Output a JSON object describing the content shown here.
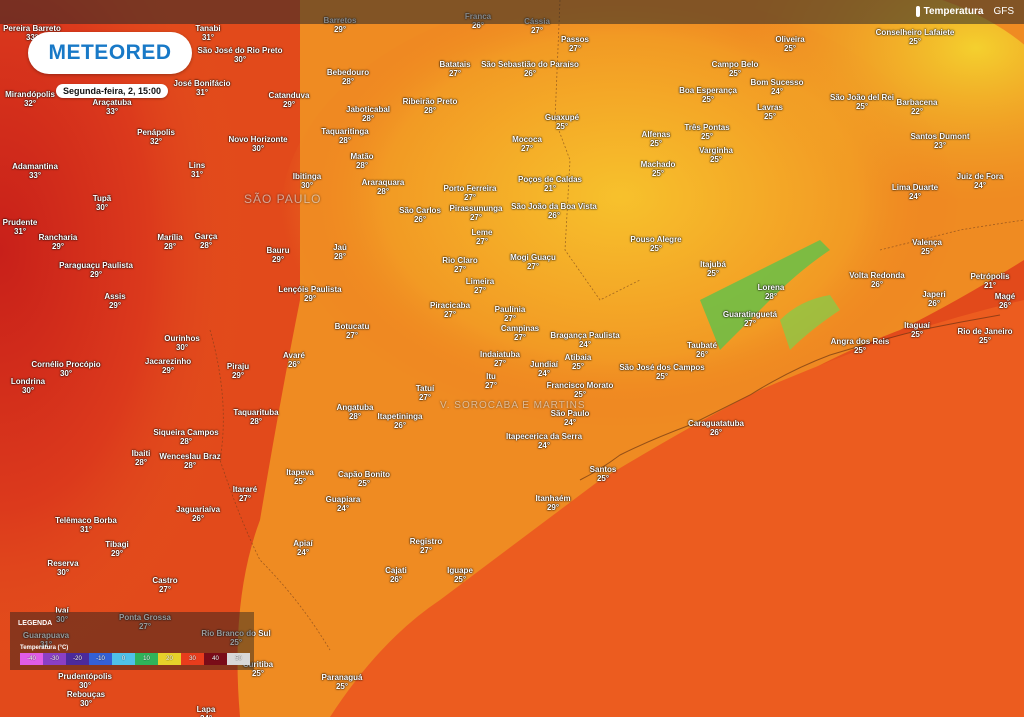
{
  "app": {
    "logo": "METEORED",
    "datetime": "Segunda-feira, 2, 15:00"
  },
  "toolbar": {
    "layer": "Temperatura",
    "model": "GFS"
  },
  "map": {
    "state_labels": [
      "SÃO PAULO",
      "V. SOROCABA E MARTINS"
    ],
    "cities": [
      {
        "name": "Pereira Barreto",
        "temp": "33°"
      },
      {
        "name": "Tanabi",
        "temp": "31°"
      },
      {
        "name": "Barretos",
        "temp": "29°"
      },
      {
        "name": "Franca",
        "temp": "26°"
      },
      {
        "name": "Cássia",
        "temp": "27°"
      },
      {
        "name": "Passos",
        "temp": "27°"
      },
      {
        "name": "Oliveira",
        "temp": "25°"
      },
      {
        "name": "Conselheiro Lafaiete",
        "temp": "25°"
      },
      {
        "name": "São José do Rio Preto",
        "temp": "30°"
      },
      {
        "name": "Bebedouro",
        "temp": "28°"
      },
      {
        "name": "Batatais",
        "temp": "27°"
      },
      {
        "name": "São Sebastião do Paraíso",
        "temp": "26°"
      },
      {
        "name": "Campo Belo",
        "temp": "25°"
      },
      {
        "name": "Barbacena",
        "temp": "22°"
      },
      {
        "name": "Mirandópolis",
        "temp": "32°"
      },
      {
        "name": "Araçatuba",
        "temp": "33°"
      },
      {
        "name": "José Bonifácio",
        "temp": "31°"
      },
      {
        "name": "Catanduva",
        "temp": "29°"
      },
      {
        "name": "Jaboticabal",
        "temp": "28°"
      },
      {
        "name": "Ribeirão Preto",
        "temp": "28°"
      },
      {
        "name": "Guaxupé",
        "temp": "25°"
      },
      {
        "name": "Boa Esperança",
        "temp": "25°"
      },
      {
        "name": "Bom Sucesso",
        "temp": "24°"
      },
      {
        "name": "São João del Rei",
        "temp": "25°"
      },
      {
        "name": "Lavras",
        "temp": "25°"
      },
      {
        "name": "Penápolis",
        "temp": "32°"
      },
      {
        "name": "Novo Horizonte",
        "temp": "30°"
      },
      {
        "name": "Taquaritinga",
        "temp": "28°"
      },
      {
        "name": "Mococa",
        "temp": "27°"
      },
      {
        "name": "Alfenas",
        "temp": "25°"
      },
      {
        "name": "Três Pontas",
        "temp": "25°"
      },
      {
        "name": "Santos Dumont",
        "temp": "23°"
      },
      {
        "name": "Adamantina",
        "temp": "33°"
      },
      {
        "name": "Lins",
        "temp": "31°"
      },
      {
        "name": "Ibitinga",
        "temp": "30°"
      },
      {
        "name": "Matão",
        "temp": "28°"
      },
      {
        "name": "Araraquara",
        "temp": "28°"
      },
      {
        "name": "Porto Ferreira",
        "temp": "27°"
      },
      {
        "name": "Poços de Caldas",
        "temp": "21°"
      },
      {
        "name": "Machado",
        "temp": "25°"
      },
      {
        "name": "Varginha",
        "temp": "25°"
      },
      {
        "name": "Lima Duarte",
        "temp": "24°"
      },
      {
        "name": "Juiz de Fora",
        "temp": "24°"
      },
      {
        "name": "Tupã",
        "temp": "30°"
      },
      {
        "name": "São Carlos",
        "temp": "26°"
      },
      {
        "name": "Pirassununga",
        "temp": "27°"
      },
      {
        "name": "São João da Boa Vista",
        "temp": "26°"
      },
      {
        "name": "Prudente",
        "temp": "31°"
      },
      {
        "name": "Rancharia",
        "temp": "29°"
      },
      {
        "name": "Marília",
        "temp": "28°"
      },
      {
        "name": "Garça",
        "temp": "28°"
      },
      {
        "name": "Bauru",
        "temp": "29°"
      },
      {
        "name": "Jaú",
        "temp": "28°"
      },
      {
        "name": "Leme",
        "temp": "27°"
      },
      {
        "name": "Rio Claro",
        "temp": "27°"
      },
      {
        "name": "Mogi Guaçu",
        "temp": "27°"
      },
      {
        "name": "Pouso Alegre",
        "temp": "25°"
      },
      {
        "name": "Itajubá",
        "temp": "25°"
      },
      {
        "name": "Valença",
        "temp": "25°"
      },
      {
        "name": "Paraguaçu Paulista",
        "temp": "29°"
      },
      {
        "name": "Limeira",
        "temp": "27°"
      },
      {
        "name": "Volta Redonda",
        "temp": "26°"
      },
      {
        "name": "Petrópolis",
        "temp": "21°"
      },
      {
        "name": "Assis",
        "temp": "29°"
      },
      {
        "name": "Lençóis Paulista",
        "temp": "29°"
      },
      {
        "name": "Piracicaba",
        "temp": "27°"
      },
      {
        "name": "Paulínia",
        "temp": "27°"
      },
      {
        "name": "Lorena",
        "temp": "28°"
      },
      {
        "name": "Japeri",
        "temp": "26°"
      },
      {
        "name": "Magé",
        "temp": "26°"
      },
      {
        "name": "Ourinhos",
        "temp": "30°"
      },
      {
        "name": "Botucatu",
        "temp": "27°"
      },
      {
        "name": "Campinas",
        "temp": "27°"
      },
      {
        "name": "Bragança Paulista",
        "temp": "24°"
      },
      {
        "name": "Guaratinguetá",
        "temp": "27°"
      },
      {
        "name": "Itaguaí",
        "temp": "25°"
      },
      {
        "name": "Rio de Janeiro",
        "temp": "25°"
      },
      {
        "name": "Cornélio Procópio",
        "temp": "30°"
      },
      {
        "name": "Jacarezinho",
        "temp": "29°"
      },
      {
        "name": "Piraju",
        "temp": "29°"
      },
      {
        "name": "Avaré",
        "temp": "26°"
      },
      {
        "name": "Indaiatuba",
        "temp": "27°"
      },
      {
        "name": "Jundiaí",
        "temp": "24°"
      },
      {
        "name": "Atibaia",
        "temp": "25°"
      },
      {
        "name": "Taubaté",
        "temp": "26°"
      },
      {
        "name": "Angra dos Reis",
        "temp": "25°"
      },
      {
        "name": "Londrina",
        "temp": "30°"
      },
      {
        "name": "Tatuí",
        "temp": "27°"
      },
      {
        "name": "Itu",
        "temp": "27°"
      },
      {
        "name": "Francisco Morato",
        "temp": "25°"
      },
      {
        "name": "São José dos Campos",
        "temp": "25°"
      },
      {
        "name": "Taquarituba",
        "temp": "28°"
      },
      {
        "name": "Angatuba",
        "temp": "28°"
      },
      {
        "name": "Itapetininga",
        "temp": "26°"
      },
      {
        "name": "São Paulo",
        "temp": "24°"
      },
      {
        "name": "Caraguatatuba",
        "temp": "26°"
      },
      {
        "name": "Siqueira Campos",
        "temp": "28°"
      },
      {
        "name": "Ibaiti",
        "temp": "28°"
      },
      {
        "name": "Wenceslau Braz",
        "temp": "28°"
      },
      {
        "name": "Itapecerica da Serra",
        "temp": "24°"
      },
      {
        "name": "Itapeva",
        "temp": "25°"
      },
      {
        "name": "Capão Bonito",
        "temp": "25°"
      },
      {
        "name": "Santos",
        "temp": "25°"
      },
      {
        "name": "Itararé",
        "temp": "27°"
      },
      {
        "name": "Guapiara",
        "temp": "24°"
      },
      {
        "name": "Itanhaém",
        "temp": "29°"
      },
      {
        "name": "Telêmaco Borba",
        "temp": "31°"
      },
      {
        "name": "Jaguariaíva",
        "temp": "26°"
      },
      {
        "name": "Tibagi",
        "temp": "29°"
      },
      {
        "name": "Apiaí",
        "temp": "24°"
      },
      {
        "name": "Registro",
        "temp": "27°"
      },
      {
        "name": "Cajati",
        "temp": "26°"
      },
      {
        "name": "Iguape",
        "temp": "25°"
      },
      {
        "name": "Reserva",
        "temp": "30°"
      },
      {
        "name": "Castro",
        "temp": "27°"
      },
      {
        "name": "Ivaí",
        "temp": "30°"
      },
      {
        "name": "Ponta Grossa",
        "temp": "27°"
      },
      {
        "name": "Rio Branco do Sul",
        "temp": "25°"
      },
      {
        "name": "Guarapuava",
        "temp": "31°"
      },
      {
        "name": "Curitiba",
        "temp": "25°"
      },
      {
        "name": "Paranaguá",
        "temp": "25°"
      },
      {
        "name": "Rebouças",
        "temp": "30°"
      },
      {
        "name": "Lapa",
        "temp": "24°"
      },
      {
        "name": "Prudentópolis",
        "temp": "30°"
      }
    ]
  },
  "legend": {
    "title": "LEGENDA",
    "subtitle": "Temperatura (°C)",
    "steps": [
      {
        "label": "-40",
        "color": "#e05ce6"
      },
      {
        "label": "-30",
        "color": "#8a3fc4"
      },
      {
        "label": "-20",
        "color": "#4b2a9c"
      },
      {
        "label": "-10",
        "color": "#3360d6"
      },
      {
        "label": "0",
        "color": "#4fc1e8"
      },
      {
        "label": "10",
        "color": "#2fb35a"
      },
      {
        "label": "20",
        "color": "#e6d12a"
      },
      {
        "label": "30",
        "color": "#e83c1c"
      },
      {
        "label": "40",
        "color": "#7a0c18"
      },
      {
        "label": "50",
        "color": "#d8d8d8"
      }
    ]
  }
}
